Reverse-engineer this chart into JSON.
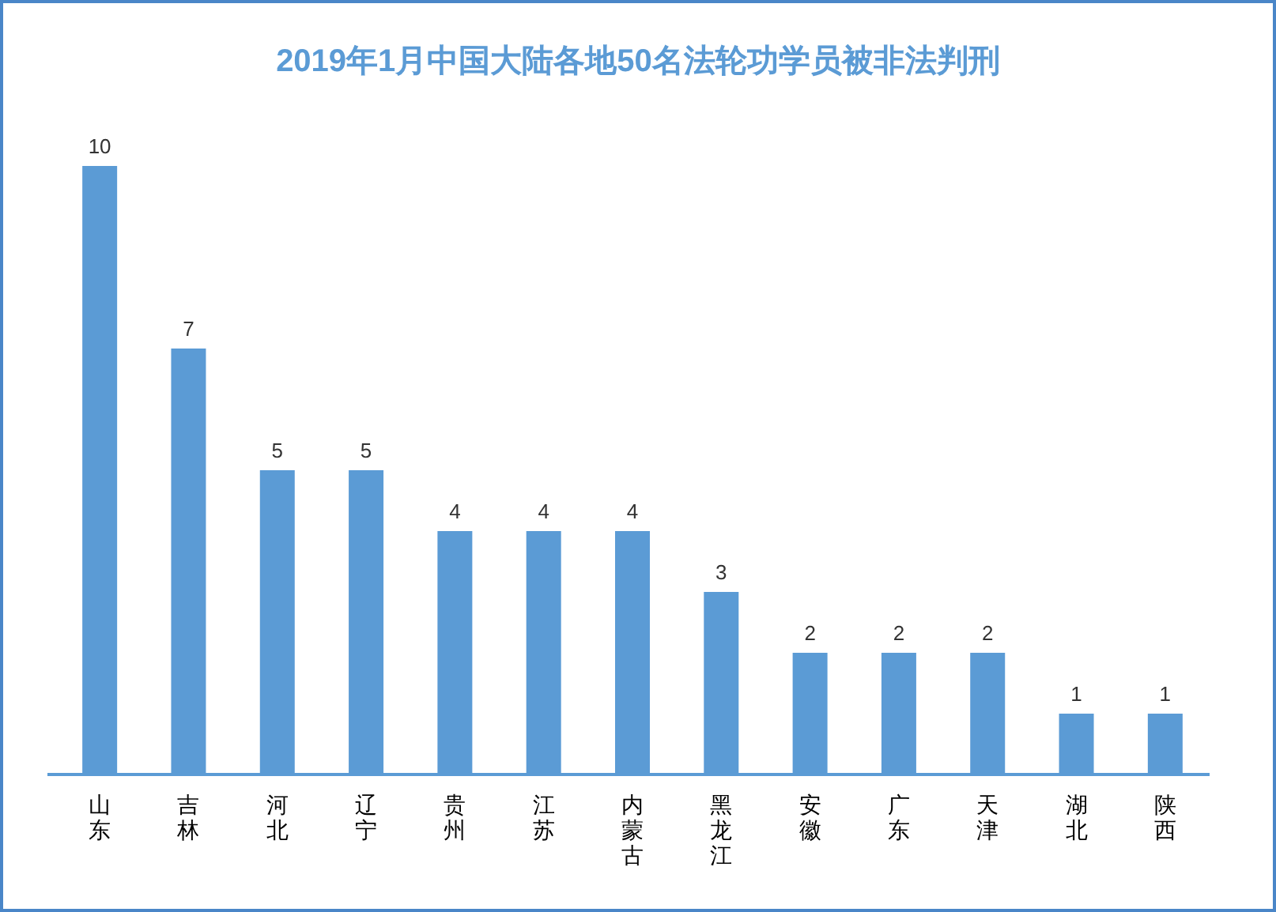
{
  "chart_data": {
    "type": "bar",
    "title": "2019年1月中国大陆各地50名法轮功学员被非法判刑",
    "categories": [
      "山东",
      "吉林",
      "河北",
      "辽宁",
      "贵州",
      "江苏",
      "内蒙古",
      "黑龙江",
      "安徽",
      "广东",
      "天津",
      "湖北",
      "陕西"
    ],
    "values": [
      10,
      7,
      5,
      5,
      4,
      4,
      4,
      3,
      2,
      2,
      2,
      1,
      1
    ],
    "color": "#5b9bd5",
    "data_labels": true
  }
}
